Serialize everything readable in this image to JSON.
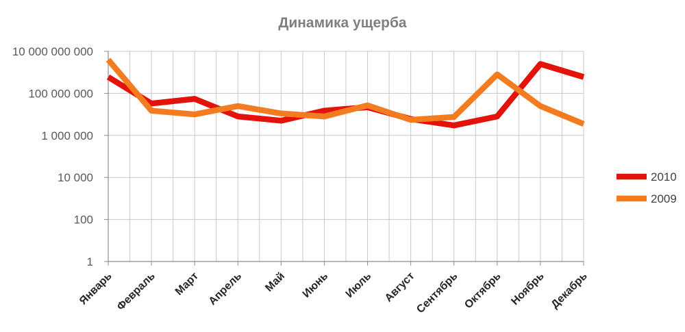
{
  "chart_data": {
    "type": "line",
    "title": "Динамика ущерба",
    "xlabel": "",
    "ylabel": "",
    "y_scale": "log10",
    "ylim": [
      1,
      10000000000
    ],
    "y_ticks": [
      1,
      100,
      10000,
      1000000,
      100000000,
      10000000000
    ],
    "y_tick_labels": [
      "1",
      "100",
      "10 000",
      "1 000 000",
      "100 000 000",
      "10 000 000 000"
    ],
    "categories": [
      "Январь",
      "Февраль",
      "Март",
      "Апрель",
      "Май",
      "Июнь",
      "Июль",
      "Август",
      "Сентябрь",
      "Октябрь",
      "Ноябрь",
      "Декабрь"
    ],
    "grid": "major-both",
    "legend_position": "right",
    "series": [
      {
        "name": "2010",
        "color": "#e3120b",
        "values": [
          600000000,
          33000000,
          55000000,
          8000000,
          5000000,
          15000000,
          22000000,
          6000000,
          3000000,
          8000000,
          2500000000,
          600000000
        ]
      },
      {
        "name": "2009",
        "color": "#f47c20",
        "values": [
          4000000000,
          15000000,
          10000000,
          25000000,
          11000000,
          8000000,
          27000000,
          5500000,
          7500000,
          800000000,
          25000000,
          3500000
        ]
      }
    ]
  }
}
